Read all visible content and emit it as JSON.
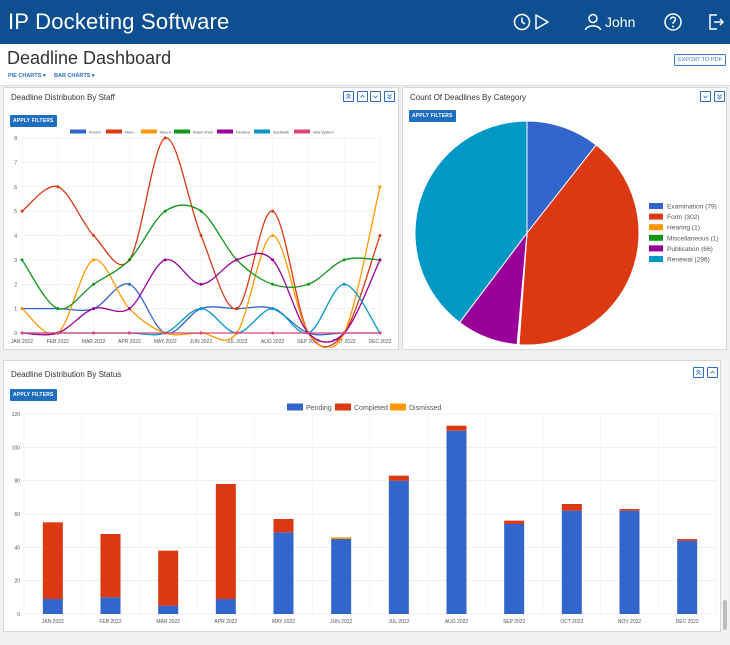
{
  "app": {
    "title": "IP Docketing Software",
    "user": "John"
  },
  "page": {
    "title": "Deadline Dashboard",
    "export_label": "EXPORT TO PDF",
    "nav": [
      "PIE CHARTS",
      "BAR CHARTS"
    ]
  },
  "icons": {
    "history": "history-icon",
    "play": "play-icon",
    "user": "user-icon",
    "help": "help-icon",
    "logout": "logout-icon"
  },
  "colors": {
    "brand": "#0d4f91",
    "accent": "#1f6fc1"
  },
  "panels": {
    "staff": {
      "title": "Deadline Distribution By Staff",
      "apply": "APPLY FILTERS"
    },
    "category": {
      "title": "Count Of Deadlines By Category",
      "apply": "APPLY FILTERS"
    },
    "status": {
      "title": "Deadline Distribution By Status",
      "apply": "APPLY FILTERS"
    }
  },
  "chart_data": [
    {
      "type": "line",
      "title": "Deadline Distribution By Staff",
      "categories": [
        "JAN 2022",
        "FEB 2022",
        "MAR 2022",
        "APR 2022",
        "MAY 2022",
        "JUN 2022",
        "JUL 2022",
        "AUG 2022",
        "SEP 2022",
        "OCT 2022",
        "DEC 2022"
      ],
      "ylim": [
        0,
        8
      ],
      "yticks": [
        "0",
        "1",
        "2",
        "3",
        "4",
        "5",
        "6",
        "7",
        "8"
      ],
      "series": [
        {
          "name": "Khushi",
          "color": "#3366cc",
          "values": [
            1,
            1,
            1,
            2,
            0,
            1,
            1,
            1,
            0,
            0,
            0
          ]
        },
        {
          "name": "Manu",
          "color": "#dc3912",
          "values": [
            5,
            6,
            4,
            3,
            8,
            4,
            1,
            5,
            0,
            0,
            4
          ]
        },
        {
          "name": "Meera",
          "color": "#ff9900",
          "values": [
            1,
            0,
            3,
            1,
            0,
            0,
            0,
            4,
            0,
            0,
            6
          ]
        },
        {
          "name": "Rahul Shah",
          "color": "#109618",
          "values": [
            3,
            1,
            2,
            3,
            5,
            5,
            3,
            2,
            2,
            3,
            3
          ]
        },
        {
          "name": "Nimisha",
          "color": "#990099",
          "values": [
            0,
            0,
            1,
            1,
            3,
            2,
            3,
            3,
            0,
            0,
            3
          ]
        },
        {
          "name": "Siddharth",
          "color": "#0099c6",
          "values": [
            0,
            0,
            0,
            0,
            0,
            1,
            0,
            1,
            0,
            2,
            0
          ]
        },
        {
          "name": "Idila System",
          "color": "#dd4477",
          "values": [
            0,
            0,
            0,
            0,
            0,
            0,
            0,
            0,
            0,
            0,
            0
          ]
        }
      ]
    },
    {
      "type": "pie",
      "title": "Count Of Deadlines By Category",
      "legend": [
        "Examination (79)",
        "Form (302)",
        "Hearing (1)",
        "Miscellaneous (1)",
        "Publication (66)",
        "Renewal (296)"
      ],
      "series": [
        {
          "name": "Examination",
          "value": 79,
          "color": "#3366cc"
        },
        {
          "name": "Form",
          "value": 302,
          "color": "#dc3912"
        },
        {
          "name": "Hearing",
          "value": 1,
          "color": "#ff9900"
        },
        {
          "name": "Miscellaneous",
          "value": 1,
          "color": "#109618"
        },
        {
          "name": "Publication",
          "value": 66,
          "color": "#990099"
        },
        {
          "name": "Renewal",
          "value": 296,
          "color": "#0099c6"
        }
      ]
    },
    {
      "type": "bar",
      "stacked": true,
      "title": "Deadline Distribution By Status",
      "categories": [
        "JAN 2022",
        "FEB 2022",
        "MAR 2022",
        "APR 2022",
        "MAY 2022",
        "JUN 2022",
        "JUL 2022",
        "AUG 2022",
        "SEP 2022",
        "OCT 2022",
        "NOV 2022",
        "DEC 2022"
      ],
      "ylim": [
        0,
        120
      ],
      "yticks": [
        "0",
        "20",
        "40",
        "60",
        "80",
        "100",
        "120"
      ],
      "series": [
        {
          "name": "Pending",
          "color": "#3366cc",
          "values": [
            9,
            10,
            5,
            9,
            49,
            45,
            80,
            110,
            54,
            62,
            62,
            44
          ]
        },
        {
          "name": "Completed",
          "color": "#dc3912",
          "values": [
            46,
            38,
            33,
            69,
            8,
            0,
            3,
            3,
            2,
            4,
            1,
            1
          ]
        },
        {
          "name": "Dismissed",
          "color": "#ff9900",
          "values": [
            0,
            0,
            0,
            0,
            0,
            1,
            0,
            0,
            0,
            0,
            0,
            0
          ]
        }
      ]
    }
  ]
}
